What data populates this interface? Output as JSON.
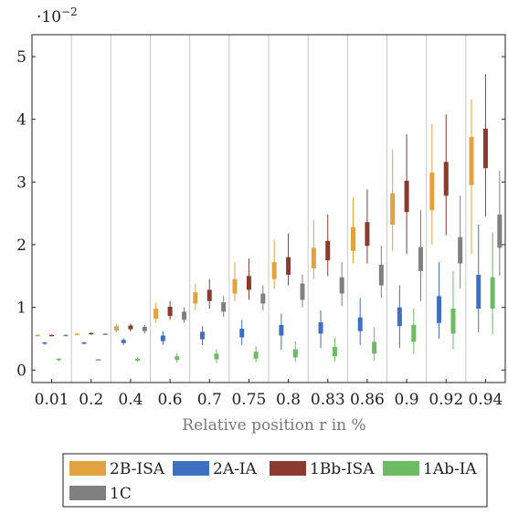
{
  "chart_data": {
    "type": "box",
    "xlabel": "Relative position r in %",
    "ylabel": "",
    "y_scale_label": "·10",
    "y_scale_exponent": "−2",
    "ylim": [
      -0.2,
      5.35
    ],
    "yticks": [
      0,
      1,
      2,
      3,
      4,
      5
    ],
    "grid": "vertical",
    "legend_position": "bottom",
    "categories": [
      "0.01",
      "0.2",
      "0.4",
      "0.6",
      "0.7",
      "0.75",
      "0.8",
      "0.83",
      "0.86",
      "0.9",
      "0.92",
      "0.94"
    ],
    "series": [
      {
        "name": "2B-ISA",
        "color": "#e2a23d",
        "boxes": [
          {
            "lo": 0.55,
            "q1": 0.55,
            "med": 0.555,
            "q3": 0.56,
            "hi": 0.57
          },
          {
            "lo": 0.56,
            "q1": 0.57,
            "med": 0.575,
            "q3": 0.58,
            "hi": 0.59
          },
          {
            "lo": 0.6,
            "q1": 0.63,
            "med": 0.66,
            "q3": 0.7,
            "hi": 0.73
          },
          {
            "lo": 0.75,
            "q1": 0.82,
            "med": 0.89,
            "q3": 0.98,
            "hi": 1.08
          },
          {
            "lo": 0.95,
            "q1": 1.06,
            "med": 1.14,
            "q3": 1.24,
            "hi": 1.38
          },
          {
            "lo": 1.1,
            "q1": 1.22,
            "med": 1.32,
            "q3": 1.45,
            "hi": 1.72
          },
          {
            "lo": 1.3,
            "q1": 1.45,
            "med": 1.58,
            "q3": 1.72,
            "hi": 2.08
          },
          {
            "lo": 1.45,
            "q1": 1.62,
            "med": 1.78,
            "q3": 1.95,
            "hi": 2.4
          },
          {
            "lo": 1.7,
            "q1": 1.9,
            "med": 2.08,
            "q3": 2.28,
            "hi": 2.75
          },
          {
            "lo": 1.9,
            "q1": 2.32,
            "med": 2.55,
            "q3": 2.82,
            "hi": 3.52
          },
          {
            "lo": 2.0,
            "q1": 2.55,
            "med": 2.82,
            "q3": 3.15,
            "hi": 3.92
          },
          {
            "lo": 1.85,
            "q1": 2.95,
            "med": 3.3,
            "q3": 3.72,
            "hi": 4.32
          }
        ]
      },
      {
        "name": "2A-IA",
        "color": "#3e6fc1",
        "boxes": [
          {
            "lo": 0.4,
            "q1": 0.42,
            "med": 0.43,
            "q3": 0.44,
            "hi": 0.45
          },
          {
            "lo": 0.41,
            "q1": 0.42,
            "med": 0.43,
            "q3": 0.44,
            "hi": 0.45
          },
          {
            "lo": 0.4,
            "q1": 0.43,
            "med": 0.45,
            "q3": 0.48,
            "hi": 0.51
          },
          {
            "lo": 0.4,
            "q1": 0.46,
            "med": 0.5,
            "q3": 0.55,
            "hi": 0.62
          },
          {
            "lo": 0.4,
            "q1": 0.49,
            "med": 0.55,
            "q3": 0.61,
            "hi": 0.7
          },
          {
            "lo": 0.4,
            "q1": 0.52,
            "med": 0.59,
            "q3": 0.66,
            "hi": 0.8
          },
          {
            "lo": 0.32,
            "q1": 0.55,
            "med": 0.63,
            "q3": 0.72,
            "hi": 0.9
          },
          {
            "lo": 0.35,
            "q1": 0.58,
            "med": 0.66,
            "q3": 0.76,
            "hi": 0.95
          },
          {
            "lo": 0.4,
            "q1": 0.62,
            "med": 0.72,
            "q3": 0.84,
            "hi": 1.15
          },
          {
            "lo": 0.35,
            "q1": 0.7,
            "med": 0.82,
            "q3": 1.0,
            "hi": 1.35
          },
          {
            "lo": 0.5,
            "q1": 0.75,
            "med": 0.9,
            "q3": 1.18,
            "hi": 1.72
          },
          {
            "lo": 0.6,
            "q1": 0.98,
            "med": 1.15,
            "q3": 1.52,
            "hi": 2.32
          }
        ]
      },
      {
        "name": "1Bb-ISA",
        "color": "#8b3a2e",
        "boxes": [
          {
            "lo": 0.54,
            "q1": 0.54,
            "med": 0.55,
            "q3": 0.56,
            "hi": 0.57
          },
          {
            "lo": 0.56,
            "q1": 0.57,
            "med": 0.58,
            "q3": 0.59,
            "hi": 0.6
          },
          {
            "lo": 0.62,
            "q1": 0.65,
            "med": 0.68,
            "q3": 0.71,
            "hi": 0.74
          },
          {
            "lo": 0.8,
            "q1": 0.86,
            "med": 0.92,
            "q3": 1.01,
            "hi": 1.1
          },
          {
            "lo": 0.98,
            "q1": 1.1,
            "med": 1.18,
            "q3": 1.28,
            "hi": 1.45
          },
          {
            "lo": 1.12,
            "q1": 1.28,
            "med": 1.38,
            "q3": 1.5,
            "hi": 1.78
          },
          {
            "lo": 1.35,
            "q1": 1.52,
            "med": 1.65,
            "q3": 1.8,
            "hi": 2.18
          },
          {
            "lo": 1.5,
            "q1": 1.75,
            "med": 1.9,
            "q3": 2.06,
            "hi": 2.48
          },
          {
            "lo": 1.7,
            "q1": 1.98,
            "med": 2.18,
            "q3": 2.36,
            "hi": 2.88
          },
          {
            "lo": 1.85,
            "q1": 2.52,
            "med": 2.75,
            "q3": 3.02,
            "hi": 3.76
          },
          {
            "lo": 2.15,
            "q1": 2.78,
            "med": 3.05,
            "q3": 3.32,
            "hi": 4.08
          },
          {
            "lo": 2.45,
            "q1": 3.22,
            "med": 3.55,
            "q3": 3.85,
            "hi": 4.72
          }
        ]
      },
      {
        "name": "1Ab-IA",
        "color": "#6dbb62",
        "boxes": [
          {
            "lo": 0.14,
            "q1": 0.16,
            "med": 0.17,
            "q3": 0.18,
            "hi": 0.19
          },
          {
            "lo": 0.15,
            "q1": 0.16,
            "med": 0.17,
            "q3": 0.17,
            "hi": 0.18
          },
          {
            "lo": 0.13,
            "q1": 0.15,
            "med": 0.17,
            "q3": 0.18,
            "hi": 0.2
          },
          {
            "lo": 0.12,
            "q1": 0.16,
            "med": 0.19,
            "q3": 0.22,
            "hi": 0.27
          },
          {
            "lo": 0.11,
            "q1": 0.17,
            "med": 0.21,
            "q3": 0.26,
            "hi": 0.33
          },
          {
            "lo": 0.12,
            "q1": 0.18,
            "med": 0.23,
            "q3": 0.29,
            "hi": 0.38
          },
          {
            "lo": 0.13,
            "q1": 0.2,
            "med": 0.26,
            "q3": 0.33,
            "hi": 0.46
          },
          {
            "lo": 0.14,
            "q1": 0.22,
            "med": 0.29,
            "q3": 0.37,
            "hi": 0.52
          },
          {
            "lo": 0.15,
            "q1": 0.26,
            "med": 0.34,
            "q3": 0.45,
            "hi": 0.68
          },
          {
            "lo": 0.25,
            "q1": 0.45,
            "med": 0.56,
            "q3": 0.72,
            "hi": 0.98
          },
          {
            "lo": 0.33,
            "q1": 0.58,
            "med": 0.75,
            "q3": 0.98,
            "hi": 1.58
          },
          {
            "lo": 0.57,
            "q1": 0.98,
            "med": 1.18,
            "q3": 1.48,
            "hi": 2.2
          }
        ]
      },
      {
        "name": "1C",
        "color": "#808080",
        "boxes": [
          {
            "lo": 0.55,
            "q1": 0.55,
            "med": 0.555,
            "q3": 0.56,
            "hi": 0.57
          },
          {
            "lo": 0.56,
            "q1": 0.57,
            "med": 0.575,
            "q3": 0.58,
            "hi": 0.59
          },
          {
            "lo": 0.58,
            "q1": 0.62,
            "med": 0.65,
            "q3": 0.69,
            "hi": 0.72
          },
          {
            "lo": 0.75,
            "q1": 0.8,
            "med": 0.86,
            "q3": 0.93,
            "hi": 1.0
          },
          {
            "lo": 0.85,
            "q1": 0.93,
            "med": 1.0,
            "q3": 1.08,
            "hi": 1.18
          },
          {
            "lo": 0.95,
            "q1": 1.06,
            "med": 1.12,
            "q3": 1.22,
            "hi": 1.35
          },
          {
            "lo": 1.0,
            "q1": 1.12,
            "med": 1.25,
            "q3": 1.38,
            "hi": 1.52
          },
          {
            "lo": 1.02,
            "q1": 1.22,
            "med": 1.35,
            "q3": 1.48,
            "hi": 1.72
          },
          {
            "lo": 1.15,
            "q1": 1.35,
            "med": 1.5,
            "q3": 1.68,
            "hi": 1.98
          },
          {
            "lo": 1.1,
            "q1": 1.58,
            "med": 1.75,
            "q3": 1.96,
            "hi": 2.55
          },
          {
            "lo": 1.3,
            "q1": 1.7,
            "med": 1.9,
            "q3": 2.12,
            "hi": 2.78
          },
          {
            "lo": 1.5,
            "q1": 1.95,
            "med": 2.18,
            "q3": 2.48,
            "hi": 3.18
          }
        ]
      }
    ]
  }
}
